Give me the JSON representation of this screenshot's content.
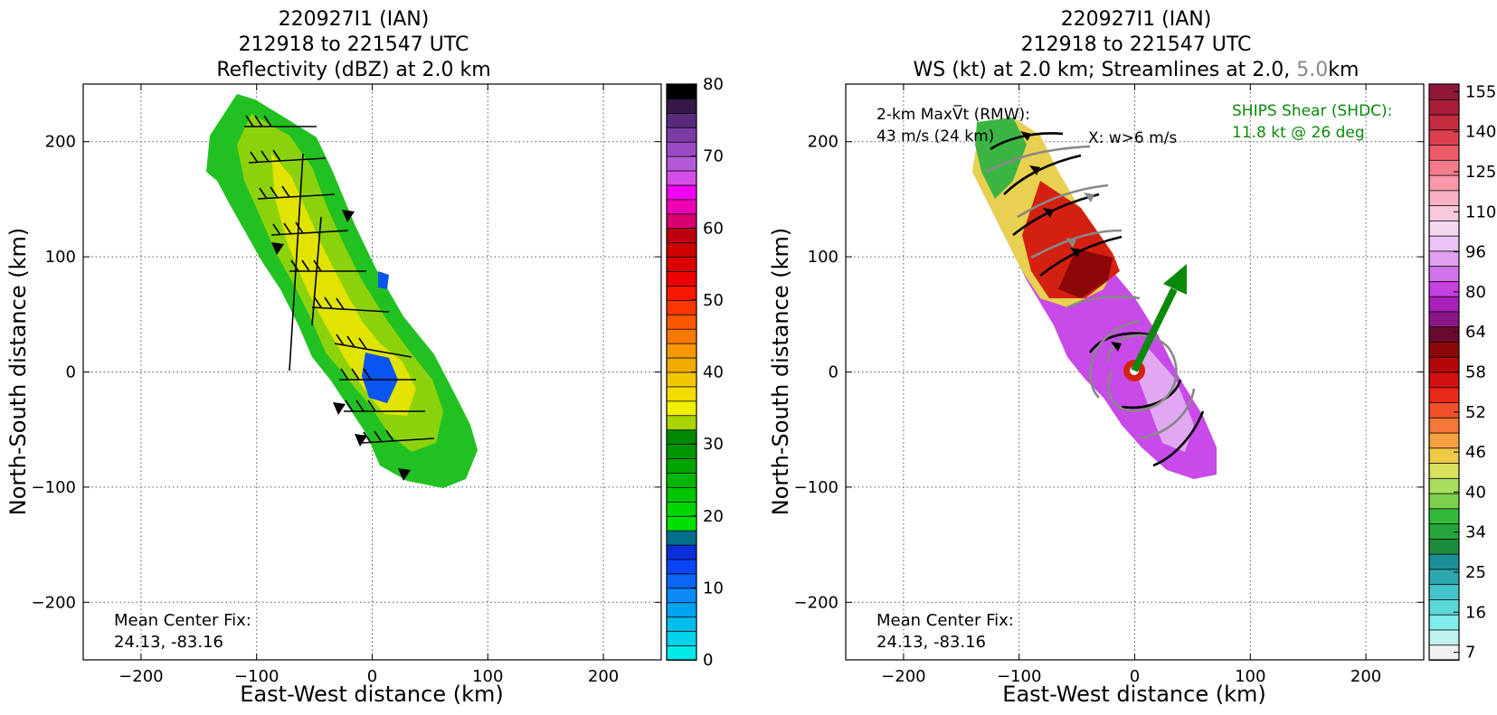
{
  "chart_data": [
    {
      "type": "heatmap",
      "title_lines": [
        "220927I1 (IAN)",
        "212918 to 221547 UTC",
        "Reflectivity (dBZ) at 2.0 km"
      ],
      "xlabel": "East-West distance (km)",
      "ylabel": "North-South distance (km)",
      "xlim": [
        -250,
        250
      ],
      "ylim": [
        -250,
        250
      ],
      "xticks": [
        -200,
        -100,
        0,
        100,
        200
      ],
      "yticks": [
        -200,
        -100,
        0,
        100,
        200
      ],
      "xtick_labels": [
        "−200",
        "−100",
        "0",
        "100",
        "200"
      ],
      "ytick_labels": [
        "−200",
        "−100",
        "0",
        "100",
        "200"
      ],
      "grid": true,
      "annotation_lines": [
        "Mean Center Fix:",
        "24.13, -83.16"
      ],
      "colorbar": {
        "ticks": [
          0,
          10,
          20,
          30,
          40,
          50,
          60,
          70,
          80
        ],
        "tick_labels": [
          "0",
          "10",
          "20",
          "30",
          "40",
          "50",
          "60",
          "70",
          "80"
        ],
        "colors": [
          "#00e9e9",
          "#00d3ea",
          "#00bdec",
          "#00a3f0",
          "#0a8af5",
          "#0a66f5",
          "#0a44f5",
          "#0a2ed8",
          "#00708a",
          "#00e000",
          "#00d400",
          "#00c600",
          "#00b600",
          "#00a400",
          "#009600",
          "#008800",
          "#a8d400",
          "#f0f000",
          "#f0dc00",
          "#f0c600",
          "#f0aa00",
          "#f89600",
          "#f87800",
          "#f85800",
          "#f83800",
          "#f81800",
          "#ee0000",
          "#dc0000",
          "#cc0000",
          "#bc0010",
          "#d80070",
          "#f000b4",
          "#f000f0",
          "#d44ee6",
          "#b45ad8",
          "#9a4ac4",
          "#7c3ca6",
          "#5a2a7c",
          "#361848",
          "#000000"
        ]
      }
    },
    {
      "type": "heatmap",
      "title_lines": [
        "220927I1 (IAN)",
        "212918 to 221547 UTC"
      ],
      "title_line3_parts": [
        "WS (kt) at 2.0 km; Streamlines at 2.0, ",
        "5.0",
        "km"
      ],
      "xlabel": "East-West distance (km)",
      "ylabel": "North-South distance (km)",
      "xlim": [
        -250,
        250
      ],
      "ylim": [
        -250,
        250
      ],
      "xticks": [
        -200,
        -100,
        0,
        100,
        200
      ],
      "yticks": [
        -200,
        -100,
        0,
        100,
        200
      ],
      "xtick_labels": [
        "−200",
        "−100",
        "0",
        "100",
        "200"
      ],
      "ytick_labels": [
        "−200",
        "−100",
        "0",
        "100",
        "200"
      ],
      "grid": true,
      "maxvt_lines": [
        "2-km MaxV̅t (RMW):",
        "43 m/s (24 km)"
      ],
      "w_note": "X: w>6 m/s",
      "shear_lines": [
        "SHIPS Shear (SHDC):",
        "11.8 kt @ 26 deg"
      ],
      "shear": {
        "speed_kt": 11.8,
        "direction_deg": 26,
        "color": "#0a8a0a"
      },
      "annotation_lines": [
        "Mean Center Fix:",
        "24.13, -83.16"
      ],
      "colorbar": {
        "tick_labels": [
          "7",
          "16",
          "25",
          "34",
          "40",
          "46",
          "52",
          "58",
          "64",
          "80",
          "96",
          "110",
          "125",
          "140",
          "155"
        ],
        "colors": [
          "#f0f0f0",
          "#c0f2f2",
          "#80ecec",
          "#5ad8d8",
          "#44c4c8",
          "#2ea8ae",
          "#1a9096",
          "#1c8c3c",
          "#26a63a",
          "#34ba3a",
          "#7cd04c",
          "#a8dc5c",
          "#d8e060",
          "#f0c848",
          "#f4a040",
          "#f47838",
          "#f05028",
          "#e82818",
          "#d41010",
          "#b40808",
          "#8c0808",
          "#6a0a30",
          "#8a1888",
          "#a820b8",
          "#c440e0",
          "#d474ec",
          "#e0a0f0",
          "#ecc4f4",
          "#f4d8f0",
          "#f8c8dc",
          "#f8b0c4",
          "#f898a8",
          "#f47c88",
          "#ec5a68",
          "#dc4050",
          "#c42c40",
          "#a81c38",
          "#901838"
        ]
      }
    }
  ]
}
